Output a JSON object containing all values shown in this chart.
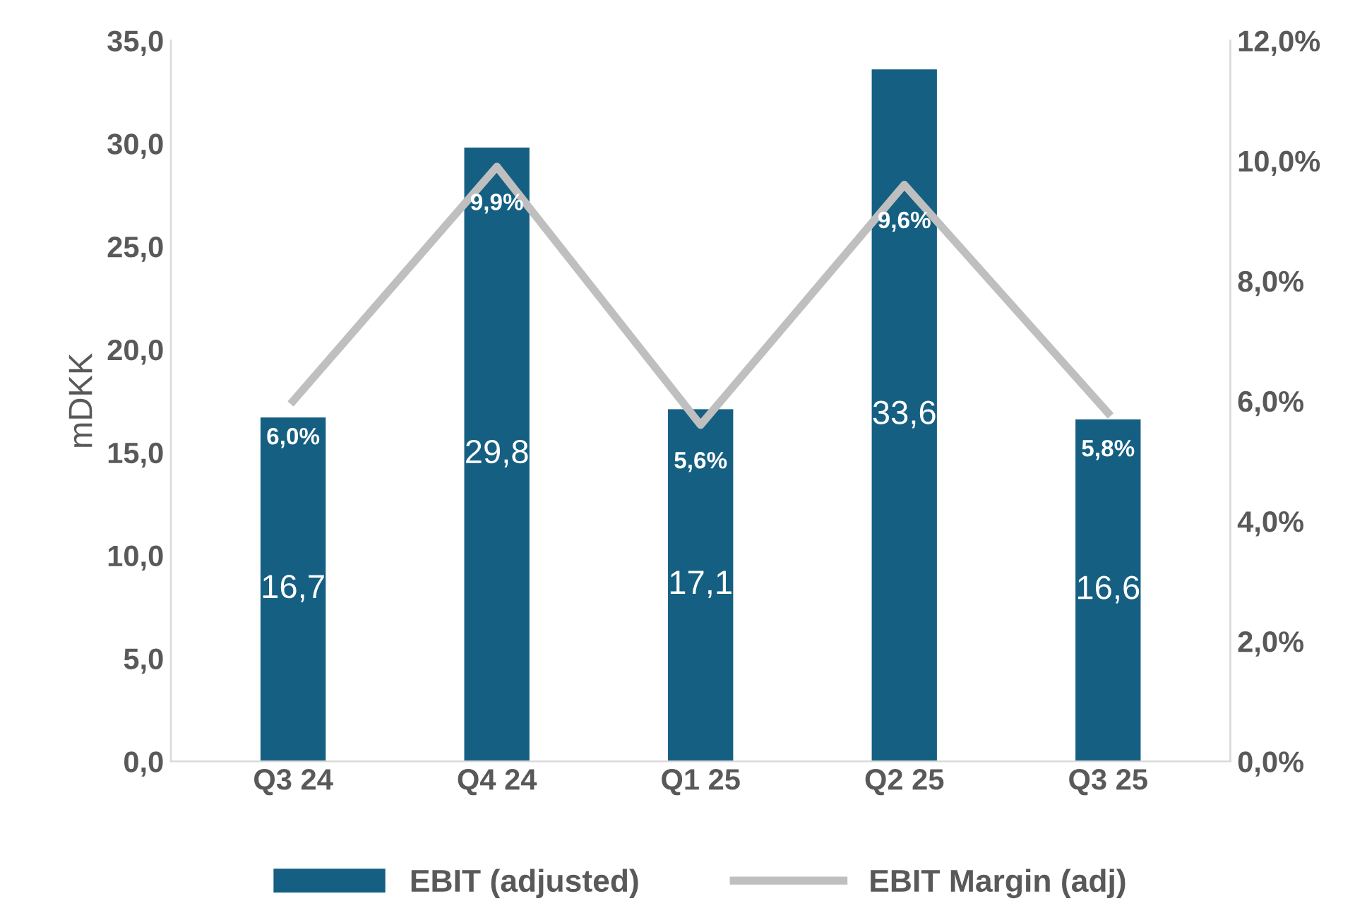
{
  "chart_data": {
    "type": "bar",
    "ylabel": "mDKK",
    "categories": [
      "Q3 24",
      "Q4 24",
      "Q1 25",
      "Q2 25",
      "Q3 25"
    ],
    "series": [
      {
        "name": "EBIT (adjusted)",
        "color": "#155f82",
        "values": [
          16.7,
          29.8,
          17.1,
          33.6,
          16.6
        ],
        "value_labels": [
          "16,7",
          "29,8",
          "17,1",
          "33,6",
          "16,6"
        ]
      },
      {
        "name": "EBIT Margin (adj)",
        "type": "line",
        "axis": "y2",
        "color": "#bfbfbf",
        "values": [
          6.0,
          9.9,
          5.6,
          9.6,
          5.8
        ],
        "value_labels": [
          "6,0%",
          "9,9%",
          "5,6%",
          "9,6%",
          "5,8%"
        ]
      }
    ],
    "ylim": [
      0,
      35
    ],
    "yticks": [
      {
        "value": 0,
        "label": "0,0"
      },
      {
        "value": 5,
        "label": "5,0"
      },
      {
        "value": 10,
        "label": "10,0"
      },
      {
        "value": 15,
        "label": "15,0"
      },
      {
        "value": 20,
        "label": "20,0"
      },
      {
        "value": 25,
        "label": "25,0"
      },
      {
        "value": 30,
        "label": "30,0"
      },
      {
        "value": 35,
        "label": "35,0"
      }
    ],
    "y2lim": [
      0,
      12
    ],
    "y2ticks": [
      {
        "value": 0,
        "label": "0,0%"
      },
      {
        "value": 2,
        "label": "2,0%"
      },
      {
        "value": 4,
        "label": "4,0%"
      },
      {
        "value": 6,
        "label": "6,0%"
      },
      {
        "value": 8,
        "label": "8,0%"
      },
      {
        "value": 10,
        "label": "10,0%"
      },
      {
        "value": 12,
        "label": "12,0%"
      }
    ],
    "grid": false,
    "legend": "bottom",
    "marker": "none",
    "line_style": "solid"
  }
}
